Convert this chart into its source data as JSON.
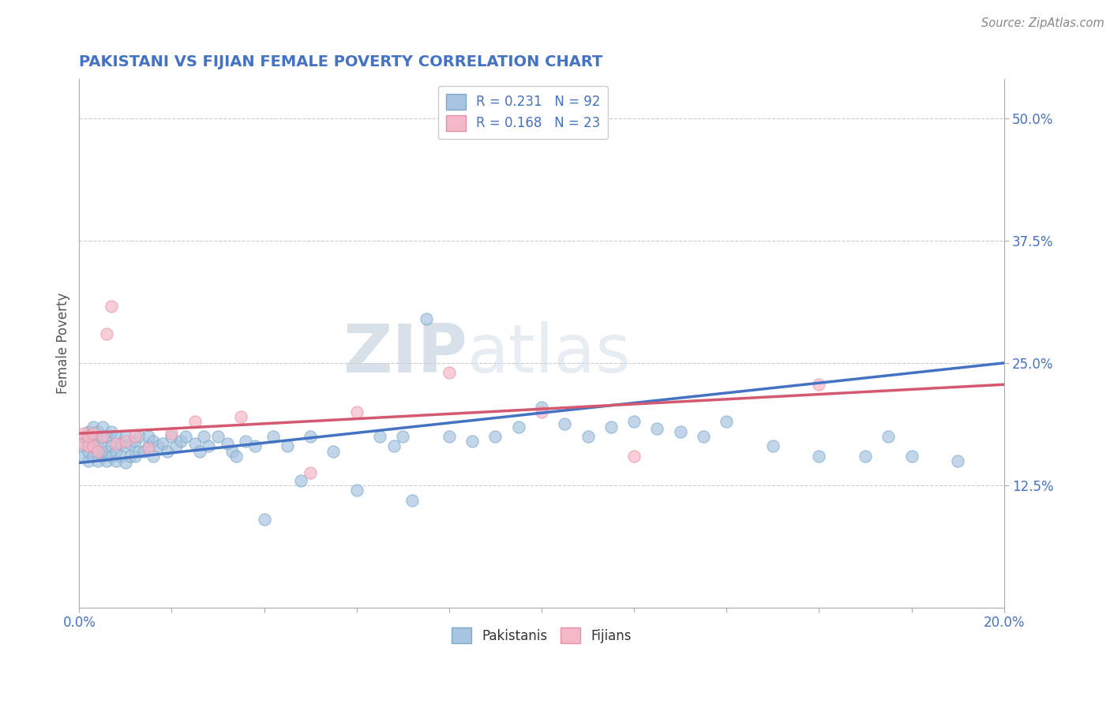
{
  "title": "PAKISTANI VS FIJIAN FEMALE POVERTY CORRELATION CHART",
  "source": "Source: ZipAtlas.com",
  "ylabel": "Female Poverty",
  "xlim": [
    0.0,
    0.2
  ],
  "ylim": [
    0.0,
    0.54
  ],
  "yticks": [
    0.125,
    0.25,
    0.375,
    0.5
  ],
  "yticklabels": [
    "12.5%",
    "25.0%",
    "37.5%",
    "50.0%"
  ],
  "xtick_labels_show": [
    "0.0%",
    "20.0%"
  ],
  "pakistani_color": "#a8c4e0",
  "fijian_color": "#f4b8c8",
  "pakistani_edge_color": "#7aaac8",
  "fijian_edge_color": "#e890a8",
  "pakistani_line_color": "#4472c4",
  "fijian_line_color": "#d45870",
  "R_pakistani": 0.231,
  "N_pakistani": 92,
  "R_fijian": 0.168,
  "N_fijian": 23,
  "watermark_zip": "ZIP",
  "watermark_atlas": "atlas",
  "background_color": "#ffffff",
  "grid_color": "#cccccc",
  "title_color": "#4472c4",
  "axis_color": "#4472c4",
  "pak_line_x0": 0.0,
  "pak_line_y0": 0.148,
  "pak_line_x1": 0.2,
  "pak_line_y1": 0.25,
  "fij_line_x0": 0.0,
  "fij_line_y0": 0.178,
  "fij_line_x1": 0.2,
  "fij_line_y1": 0.228,
  "pak_x": [
    0.001,
    0.001,
    0.001,
    0.002,
    0.002,
    0.002,
    0.002,
    0.003,
    0.003,
    0.003,
    0.003,
    0.004,
    0.004,
    0.004,
    0.004,
    0.005,
    0.005,
    0.005,
    0.005,
    0.006,
    0.006,
    0.006,
    0.007,
    0.007,
    0.007,
    0.008,
    0.008,
    0.008,
    0.009,
    0.009,
    0.01,
    0.01,
    0.01,
    0.011,
    0.011,
    0.012,
    0.012,
    0.013,
    0.013,
    0.014,
    0.015,
    0.015,
    0.016,
    0.016,
    0.017,
    0.018,
    0.019,
    0.02,
    0.021,
    0.022,
    0.023,
    0.025,
    0.026,
    0.027,
    0.028,
    0.03,
    0.032,
    0.033,
    0.034,
    0.036,
    0.038,
    0.04,
    0.042,
    0.045,
    0.048,
    0.05,
    0.055,
    0.06,
    0.065,
    0.068,
    0.07,
    0.072,
    0.075,
    0.08,
    0.085,
    0.09,
    0.095,
    0.1,
    0.105,
    0.11,
    0.115,
    0.12,
    0.125,
    0.13,
    0.135,
    0.14,
    0.15,
    0.16,
    0.17,
    0.175,
    0.18,
    0.19
  ],
  "pak_y": [
    0.155,
    0.165,
    0.175,
    0.15,
    0.16,
    0.17,
    0.18,
    0.155,
    0.165,
    0.175,
    0.185,
    0.15,
    0.16,
    0.17,
    0.18,
    0.155,
    0.165,
    0.175,
    0.185,
    0.15,
    0.16,
    0.175,
    0.155,
    0.165,
    0.18,
    0.15,
    0.16,
    0.175,
    0.155,
    0.168,
    0.148,
    0.165,
    0.175,
    0.155,
    0.168,
    0.155,
    0.17,
    0.16,
    0.175,
    0.16,
    0.165,
    0.175,
    0.155,
    0.17,
    0.165,
    0.168,
    0.16,
    0.175,
    0.165,
    0.17,
    0.175,
    0.168,
    0.16,
    0.175,
    0.165,
    0.175,
    0.168,
    0.16,
    0.155,
    0.17,
    0.165,
    0.09,
    0.175,
    0.165,
    0.13,
    0.175,
    0.16,
    0.12,
    0.175,
    0.165,
    0.175,
    0.11,
    0.295,
    0.175,
    0.17,
    0.175,
    0.185,
    0.205,
    0.188,
    0.175,
    0.185,
    0.19,
    0.183,
    0.18,
    0.175,
    0.19,
    0.165,
    0.155,
    0.155,
    0.175,
    0.155,
    0.15
  ],
  "fij_x": [
    0.001,
    0.001,
    0.002,
    0.002,
    0.003,
    0.003,
    0.004,
    0.005,
    0.006,
    0.007,
    0.008,
    0.01,
    0.012,
    0.015,
    0.02,
    0.025,
    0.035,
    0.05,
    0.06,
    0.08,
    0.1,
    0.12,
    0.16
  ],
  "fij_y": [
    0.168,
    0.178,
    0.165,
    0.175,
    0.165,
    0.178,
    0.16,
    0.175,
    0.28,
    0.308,
    0.168,
    0.17,
    0.175,
    0.163,
    0.178,
    0.19,
    0.195,
    0.138,
    0.2,
    0.24,
    0.2,
    0.155,
    0.228
  ]
}
